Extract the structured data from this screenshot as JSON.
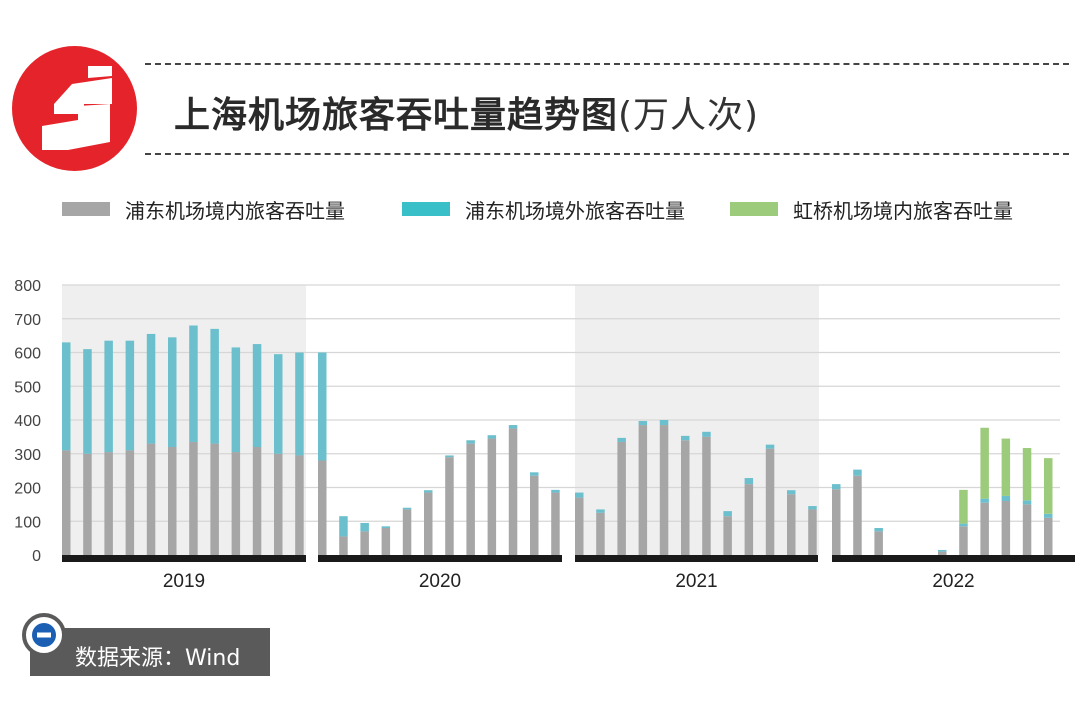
{
  "header": {
    "title_main": "上海机场旅客吞吐量趋势图",
    "title_unit": "(万人次)"
  },
  "legend": [
    {
      "label": "浦东机场境内旅客吞吐量",
      "color": "#a6a6a6"
    },
    {
      "label": "浦东机场境外旅客吞吐量",
      "color": "#39bfc7"
    },
    {
      "label": "虹桥机场境内旅客吞吐量",
      "color": "#9ccb7c"
    }
  ],
  "source": "数据来源：Wind",
  "colors": {
    "brand_red": "#e5232b",
    "domestic": "#a6a6a6",
    "international": "#6cbfcc",
    "hongqiao": "#9ccb7c",
    "band": "#efefef",
    "grid": "#d6d6d6",
    "axis": "#1a1a1a"
  },
  "chart_data": {
    "type": "bar",
    "stacked": true,
    "ylim": [
      0,
      800
    ],
    "yticks": [
      0,
      100,
      200,
      300,
      400,
      500,
      600,
      700,
      800
    ],
    "years": [
      "2019",
      "2020",
      "2021",
      "2022"
    ],
    "months_per_year": 12,
    "series": [
      {
        "name": "浦东机场境内旅客吞吐量",
        "color": "#a6a6a6",
        "values": [
          310,
          300,
          305,
          310,
          330,
          320,
          335,
          330,
          305,
          320,
          300,
          295,
          280,
          55,
          70,
          80,
          135,
          185,
          290,
          330,
          345,
          375,
          235,
          185,
          170,
          125,
          335,
          385,
          385,
          340,
          350,
          115,
          210,
          315,
          180,
          135,
          195,
          235,
          70,
          null,
          null,
          10,
          85,
          155,
          160,
          150,
          110,
          null
        ]
      },
      {
        "name": "浦东机场境外旅客吞吐量",
        "color": "#6cbfcc",
        "values": [
          320,
          310,
          330,
          325,
          325,
          325,
          345,
          340,
          310,
          305,
          295,
          305,
          320,
          60,
          25,
          5,
          5,
          7,
          5,
          10,
          10,
          10,
          10,
          8,
          15,
          10,
          12,
          12,
          15,
          13,
          15,
          15,
          18,
          12,
          12,
          10,
          15,
          18,
          10,
          null,
          null,
          5,
          8,
          12,
          15,
          12,
          12,
          null
        ]
      },
      {
        "name": "虹桥机场境内旅客吞吐量",
        "color": "#9ccb7c",
        "values": [
          null,
          null,
          null,
          null,
          null,
          null,
          null,
          null,
          null,
          null,
          null,
          null,
          null,
          null,
          null,
          null,
          null,
          null,
          null,
          null,
          null,
          null,
          null,
          null,
          null,
          null,
          null,
          null,
          null,
          null,
          null,
          null,
          null,
          null,
          null,
          null,
          null,
          null,
          null,
          null,
          null,
          null,
          100,
          210,
          170,
          155,
          165,
          null
        ]
      }
    ]
  }
}
